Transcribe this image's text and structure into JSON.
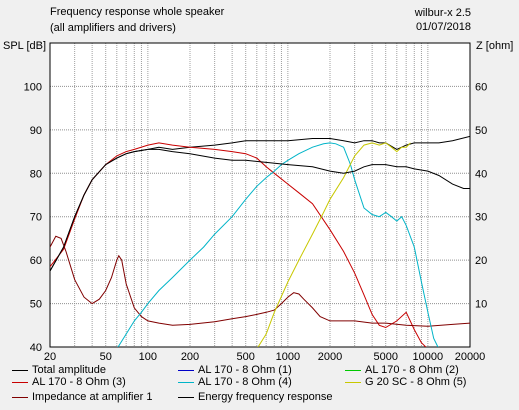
{
  "header": {
    "title": "Frequency response whole speaker",
    "subtitle": "(all amplifiers and drivers)",
    "app": "wilbur-x 2.5",
    "date": "01/07/2018"
  },
  "chart_data": {
    "type": "line",
    "title": "Frequency response whole speaker",
    "subtitle": "(all amplifiers and drivers)",
    "ylabel": "SPL [dB]",
    "y2label": "Z [ohm]",
    "xscale": "log",
    "xlim": [
      20,
      20000
    ],
    "ylim": [
      40,
      110
    ],
    "y2lim": [
      0,
      70
    ],
    "grid": true,
    "legend_position": "bottom",
    "x_ticks": [
      20,
      30,
      40,
      50,
      60,
      70,
      80,
      90,
      100,
      200,
      300,
      400,
      500,
      600,
      700,
      800,
      900,
      1000,
      2000,
      3000,
      4000,
      5000,
      6000,
      7000,
      8000,
      9000,
      10000,
      20000
    ],
    "x_tick_labels": [
      {
        "value": 20,
        "label": "20"
      },
      {
        "value": 50,
        "label": "50"
      },
      {
        "value": 100,
        "label": "100"
      },
      {
        "value": 200,
        "label": "200"
      },
      {
        "value": 500,
        "label": "500"
      },
      {
        "value": 1000,
        "label": "1000"
      },
      {
        "value": 2000,
        "label": "2000"
      },
      {
        "value": 5000,
        "label": "5000"
      },
      {
        "value": 10000,
        "label": "10000"
      },
      {
        "value": 20000,
        "label": "20000"
      }
    ],
    "y_ticks": [
      40,
      50,
      60,
      70,
      80,
      90,
      100
    ],
    "y_tick_labels": [
      "40",
      "50",
      "60",
      "70",
      "80",
      "90",
      "100"
    ],
    "y2_ticks": [
      10,
      20,
      30,
      40,
      50,
      60
    ],
    "y2_tick_labels": [
      "10",
      "20",
      "30",
      "40",
      "50",
      "60"
    ],
    "series": [
      {
        "name": "Total amplitude",
        "color": "#000000",
        "axis": "left",
        "points": [
          [
            20,
            57.5
          ],
          [
            25,
            63
          ],
          [
            30,
            70
          ],
          [
            35,
            75
          ],
          [
            40,
            78.5
          ],
          [
            50,
            82
          ],
          [
            60,
            83.5
          ],
          [
            70,
            84.5
          ],
          [
            80,
            85
          ],
          [
            100,
            85.5
          ],
          [
            120,
            86
          ],
          [
            150,
            85.5
          ],
          [
            200,
            86
          ],
          [
            300,
            86.5
          ],
          [
            400,
            87
          ],
          [
            500,
            87.5
          ],
          [
            700,
            87.5
          ],
          [
            1000,
            87.5
          ],
          [
            1500,
            88
          ],
          [
            2000,
            88
          ],
          [
            2500,
            87.5
          ],
          [
            3000,
            87
          ],
          [
            3500,
            87.5
          ],
          [
            4000,
            87.5
          ],
          [
            4500,
            87
          ],
          [
            5000,
            87
          ],
          [
            6000,
            85.5
          ],
          [
            7000,
            86.5
          ],
          [
            8000,
            87
          ],
          [
            10000,
            87
          ],
          [
            12000,
            87
          ],
          [
            15000,
            87.5
          ],
          [
            20000,
            88.5
          ]
        ]
      },
      {
        "name": "AL 170 - 8 Ohm (3)",
        "color": "#c80000",
        "axis": "left",
        "points": [
          [
            20,
            58.5
          ],
          [
            25,
            62.5
          ],
          [
            30,
            69.5
          ],
          [
            35,
            75
          ],
          [
            40,
            78.5
          ],
          [
            50,
            82
          ],
          [
            60,
            84
          ],
          [
            70,
            85
          ],
          [
            80,
            85.5
          ],
          [
            100,
            86.5
          ],
          [
            120,
            87
          ],
          [
            150,
            86.5
          ],
          [
            200,
            86
          ],
          [
            300,
            85.5
          ],
          [
            400,
            85
          ],
          [
            500,
            84.5
          ],
          [
            600,
            83.5
          ],
          [
            700,
            81.5
          ],
          [
            800,
            80
          ],
          [
            1000,
            77.5
          ],
          [
            1200,
            75.5
          ],
          [
            1500,
            73
          ],
          [
            2000,
            67
          ],
          [
            2500,
            62
          ],
          [
            3000,
            57
          ],
          [
            3500,
            52
          ],
          [
            4000,
            47.5
          ],
          [
            4500,
            45
          ],
          [
            5000,
            44.5
          ],
          [
            6000,
            46
          ],
          [
            7000,
            48
          ],
          [
            8000,
            44
          ],
          [
            9000,
            41
          ],
          [
            10000,
            38
          ]
        ]
      },
      {
        "name": "Impedance at amplifier 1",
        "color": "#800000",
        "axis": "right",
        "points": [
          [
            20,
            23
          ],
          [
            22,
            25.5
          ],
          [
            24,
            25
          ],
          [
            26,
            22
          ],
          [
            30,
            15.5
          ],
          [
            35,
            11.5
          ],
          [
            40,
            10
          ],
          [
            45,
            11
          ],
          [
            50,
            13
          ],
          [
            55,
            16
          ],
          [
            60,
            20
          ],
          [
            62,
            21
          ],
          [
            65,
            20
          ],
          [
            70,
            14.5
          ],
          [
            80,
            9
          ],
          [
            90,
            7
          ],
          [
            100,
            6
          ],
          [
            120,
            5.5
          ],
          [
            150,
            5
          ],
          [
            200,
            5.2
          ],
          [
            300,
            5.8
          ],
          [
            400,
            6.5
          ],
          [
            500,
            7
          ],
          [
            600,
            7.5
          ],
          [
            700,
            8
          ],
          [
            800,
            8.5
          ],
          [
            900,
            10
          ],
          [
            1000,
            11.5
          ],
          [
            1100,
            12.5
          ],
          [
            1200,
            12.2
          ],
          [
            1300,
            11
          ],
          [
            1500,
            9
          ],
          [
            1700,
            7
          ],
          [
            2000,
            6
          ],
          [
            3000,
            6
          ],
          [
            4000,
            5.5
          ],
          [
            5000,
            5.5
          ],
          [
            7000,
            5
          ],
          [
            10000,
            4.8
          ],
          [
            15000,
            5.2
          ],
          [
            20000,
            5.5
          ]
        ]
      },
      {
        "name": "AL 170 - 8 Ohm (4)",
        "color": "#00b4c8",
        "axis": "left",
        "points": [
          [
            60,
            38
          ],
          [
            70,
            43
          ],
          [
            80,
            46
          ],
          [
            90,
            48
          ],
          [
            100,
            50
          ],
          [
            120,
            53
          ],
          [
            150,
            56
          ],
          [
            200,
            60
          ],
          [
            250,
            63
          ],
          [
            300,
            66
          ],
          [
            400,
            70
          ],
          [
            500,
            74
          ],
          [
            600,
            77
          ],
          [
            700,
            79
          ],
          [
            800,
            80.5
          ],
          [
            900,
            82
          ],
          [
            1000,
            83
          ],
          [
            1200,
            84.5
          ],
          [
            1500,
            86
          ],
          [
            1800,
            86.8
          ],
          [
            2000,
            87
          ],
          [
            2200,
            86.8
          ],
          [
            2500,
            86
          ],
          [
            2800,
            82
          ],
          [
            3000,
            78.5
          ],
          [
            3500,
            72
          ],
          [
            4000,
            70.5
          ],
          [
            4500,
            70
          ],
          [
            5000,
            71
          ],
          [
            5500,
            70
          ],
          [
            6000,
            69
          ],
          [
            6500,
            70
          ],
          [
            7000,
            68
          ],
          [
            8000,
            63
          ],
          [
            9000,
            55
          ],
          [
            10000,
            48
          ],
          [
            11000,
            42
          ],
          [
            12000,
            38
          ]
        ]
      },
      {
        "name": "G 20 SC - 8 Ohm (5)",
        "color": "#c8c800",
        "axis": "left",
        "points": [
          [
            600,
            38
          ],
          [
            700,
            43
          ],
          [
            800,
            48
          ],
          [
            1000,
            55
          ],
          [
            1200,
            60
          ],
          [
            1500,
            66
          ],
          [
            1800,
            71
          ],
          [
            2000,
            74
          ],
          [
            2500,
            79
          ],
          [
            3000,
            84
          ],
          [
            3500,
            86.5
          ],
          [
            4000,
            87
          ],
          [
            4500,
            86.5
          ],
          [
            5000,
            87
          ],
          [
            5500,
            86
          ],
          [
            6000,
            85
          ],
          [
            6500,
            86
          ],
          [
            7000,
            86
          ],
          [
            7500,
            87
          ]
        ]
      },
      {
        "name": "Energy frequency response",
        "color": "#000000",
        "axis": "left",
        "points": [
          [
            20,
            57.5
          ],
          [
            25,
            63
          ],
          [
            30,
            70
          ],
          [
            35,
            75
          ],
          [
            40,
            78.5
          ],
          [
            50,
            82
          ],
          [
            60,
            83.5
          ],
          [
            70,
            84.5
          ],
          [
            80,
            85
          ],
          [
            100,
            85.5
          ],
          [
            120,
            85.5
          ],
          [
            150,
            85
          ],
          [
            200,
            84.5
          ],
          [
            300,
            83.5
          ],
          [
            400,
            83
          ],
          [
            500,
            83
          ],
          [
            700,
            82.5
          ],
          [
            1000,
            82
          ],
          [
            1500,
            81.5
          ],
          [
            2000,
            80.5
          ],
          [
            2500,
            80
          ],
          [
            3000,
            80.5
          ],
          [
            3500,
            81.5
          ],
          [
            4000,
            82
          ],
          [
            5000,
            82
          ],
          [
            6000,
            81.5
          ],
          [
            7000,
            81.5
          ],
          [
            8000,
            81
          ],
          [
            10000,
            80.5
          ],
          [
            12000,
            79.5
          ],
          [
            15000,
            77.5
          ],
          [
            18000,
            76.5
          ],
          [
            20000,
            76.5
          ]
        ]
      }
    ]
  },
  "legend": [
    {
      "label": "Total amplitude",
      "color": "#000000"
    },
    {
      "label": "AL 170 - 8 Ohm (1)",
      "color": "#0000c8"
    },
    {
      "label": "AL 170 - 8 Ohm (2)",
      "color": "#00c800"
    },
    {
      "label": "AL 170 - 8 Ohm (3)",
      "color": "#c80000"
    },
    {
      "label": "AL 170 - 8 Ohm (4)",
      "color": "#00b4c8"
    },
    {
      "label": "G 20 SC - 8 Ohm (5)",
      "color": "#c8c800"
    },
    {
      "label": "Impedance at amplifier 1",
      "color": "#800000"
    },
    {
      "label": "Energy frequency response",
      "color": "#000000"
    }
  ]
}
